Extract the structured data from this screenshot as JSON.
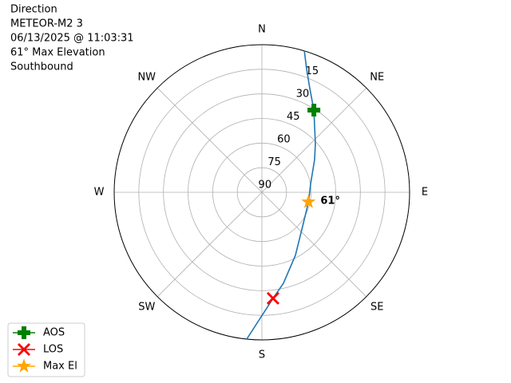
{
  "chart_data": {
    "type": "polar",
    "title": [
      "Direction",
      "METEOR-M2 3",
      "06/13/2025 @ 11:03:31",
      "61° Max Elevation",
      "Southbound"
    ],
    "rlim": [
      90,
      0
    ],
    "rticks": [
      15,
      30,
      45,
      60,
      75,
      90
    ],
    "thetaticks": [
      {
        "value": 0,
        "label": "N"
      },
      {
        "value": 45,
        "label": "NE"
      },
      {
        "value": 90,
        "label": "E"
      },
      {
        "value": 135,
        "label": "SE"
      },
      {
        "value": 180,
        "label": "S"
      },
      {
        "value": 225,
        "label": "SW"
      },
      {
        "value": 270,
        "label": "W"
      },
      {
        "value": 315,
        "label": "NW"
      }
    ],
    "grid": true,
    "track": {
      "color": "#1f77b4",
      "x": [
        16.7,
        19.7,
        24.6,
        32.3,
        47.7,
        58.2,
        79.8,
        101.7,
        126.9,
        152,
        166.7,
        174,
        185.9
      ],
      "values": [
        0,
        9.4,
        20,
        30.7,
        45.9,
        52.2,
        59.8,
        61,
        58.4,
        46.5,
        33,
        25,
        0
      ]
    },
    "series": [
      {
        "name": "AOS",
        "color": "green",
        "marker": "plus",
        "x": [
          32.3
        ],
        "values": [
          30.7
        ]
      },
      {
        "name": "LOS",
        "color": "red",
        "marker": "x",
        "x": [
          174
        ],
        "values": [
          25
        ]
      },
      {
        "name": "Max El",
        "color": "orange",
        "marker": "star",
        "x": [
          101.7
        ],
        "values": [
          61
        ],
        "value_labels": [
          "61°"
        ]
      }
    ],
    "legend": "lower left"
  }
}
